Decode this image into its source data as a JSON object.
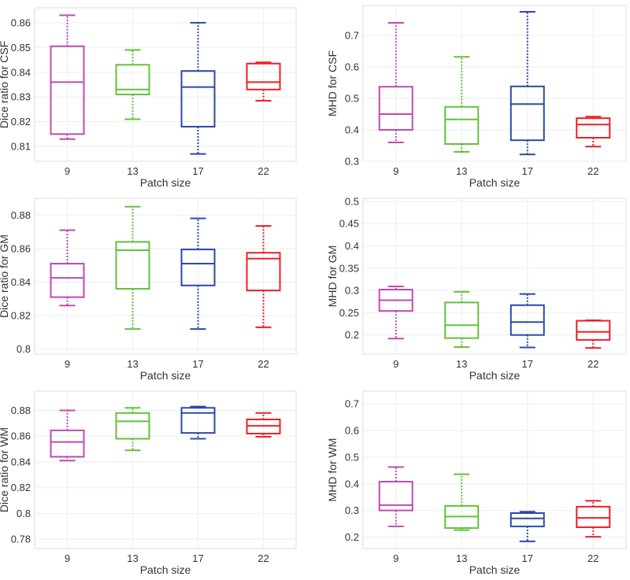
{
  "colors": {
    "9": "#c248b4",
    "13": "#62c23a",
    "17": "#2c48a8",
    "22": "#f01e26"
  },
  "chart_data": [
    {
      "type": "box",
      "xlabel": "Patch size",
      "ylabel": "Dice ratio for CSF",
      "categories": [
        "9",
        "13",
        "17",
        "22"
      ],
      "ylim": [
        0.804,
        0.866
      ],
      "yticks": [
        "0.81",
        "0.82",
        "0.83",
        "0.84",
        "0.85",
        "0.86"
      ],
      "grid": true,
      "boxes": [
        {
          "min": 0.813,
          "q1": 0.815,
          "median": 0.836,
          "q3": 0.8505,
          "max": 0.863
        },
        {
          "min": 0.821,
          "q1": 0.831,
          "median": 0.833,
          "q3": 0.843,
          "max": 0.849
        },
        {
          "min": 0.807,
          "q1": 0.818,
          "median": 0.834,
          "q3": 0.8405,
          "max": 0.86
        },
        {
          "min": 0.8285,
          "q1": 0.833,
          "median": 0.836,
          "q3": 0.8435,
          "max": 0.844
        }
      ]
    },
    {
      "type": "box",
      "xlabel": "Patch size",
      "ylabel": "MHD for CSF",
      "categories": [
        "9",
        "13",
        "17",
        "22"
      ],
      "ylim": [
        0.3,
        0.795
      ],
      "yticks": [
        "0.3",
        "0.4",
        "0.5",
        "0.6",
        "0.7"
      ],
      "grid": true,
      "boxes": [
        {
          "min": 0.36,
          "q1": 0.4,
          "median": 0.45,
          "q3": 0.537,
          "max": 0.74
        },
        {
          "min": 0.33,
          "q1": 0.355,
          "median": 0.433,
          "q3": 0.473,
          "max": 0.632
        },
        {
          "min": 0.322,
          "q1": 0.367,
          "median": 0.482,
          "q3": 0.538,
          "max": 0.775
        },
        {
          "min": 0.347,
          "q1": 0.375,
          "median": 0.417,
          "q3": 0.437,
          "max": 0.442
        }
      ]
    },
    {
      "type": "box",
      "xlabel": "Patch size",
      "ylabel": "Dice ratio for GM",
      "categories": [
        "9",
        "13",
        "17",
        "22"
      ],
      "ylim": [
        0.797,
        0.89
      ],
      "yticks": [
        "0.8",
        "0.82",
        "0.84",
        "0.86",
        "0.88"
      ],
      "grid": true,
      "boxes": [
        {
          "min": 0.826,
          "q1": 0.831,
          "median": 0.8425,
          "q3": 0.851,
          "max": 0.871
        },
        {
          "min": 0.812,
          "q1": 0.836,
          "median": 0.859,
          "q3": 0.864,
          "max": 0.885
        },
        {
          "min": 0.812,
          "q1": 0.838,
          "median": 0.851,
          "q3": 0.8595,
          "max": 0.878
        },
        {
          "min": 0.813,
          "q1": 0.835,
          "median": 0.854,
          "q3": 0.8575,
          "max": 0.8735
        }
      ]
    },
    {
      "type": "box",
      "xlabel": "Patch size",
      "ylabel": "MHD for GM",
      "categories": [
        "9",
        "13",
        "17",
        "22"
      ],
      "ylim": [
        0.157,
        0.507
      ],
      "yticks": [
        "0.2",
        "0.25",
        "0.3",
        "0.35",
        "0.4",
        "0.45",
        "0.5"
      ],
      "grid": true,
      "boxes": [
        {
          "min": 0.192,
          "q1": 0.254,
          "median": 0.278,
          "q3": 0.302,
          "max": 0.309
        },
        {
          "min": 0.173,
          "q1": 0.193,
          "median": 0.222,
          "q3": 0.273,
          "max": 0.297
        },
        {
          "min": 0.172,
          "q1": 0.2,
          "median": 0.229,
          "q3": 0.267,
          "max": 0.292
        },
        {
          "min": 0.171,
          "q1": 0.189,
          "median": 0.207,
          "q3": 0.232,
          "max": 0.233
        }
      ]
    },
    {
      "type": "box",
      "xlabel": "Patch size",
      "ylabel": "Dice ratio for WM",
      "categories": [
        "9",
        "13",
        "17",
        "22"
      ],
      "ylim": [
        0.7727,
        0.895
      ],
      "yticks": [
        "0.78",
        "0.8",
        "0.82",
        "0.84",
        "0.86",
        "0.88"
      ],
      "grid": true,
      "boxes": [
        {
          "min": 0.841,
          "q1": 0.844,
          "median": 0.8555,
          "q3": 0.8645,
          "max": 0.88
        },
        {
          "min": 0.849,
          "q1": 0.858,
          "median": 0.8715,
          "q3": 0.878,
          "max": 0.882
        },
        {
          "min": 0.858,
          "q1": 0.8625,
          "median": 0.878,
          "q3": 0.882,
          "max": 0.883
        },
        {
          "min": 0.8595,
          "q1": 0.862,
          "median": 0.868,
          "q3": 0.873,
          "max": 0.878
        }
      ]
    },
    {
      "type": "box",
      "xlabel": "Patch size",
      "ylabel": "MHD for WM",
      "categories": [
        "9",
        "13",
        "17",
        "22"
      ],
      "ylim": [
        0.157,
        0.748
      ],
      "yticks": [
        "0.2",
        "0.3",
        "0.4",
        "0.5",
        "0.6",
        "0.7"
      ],
      "grid": true,
      "boxes": [
        {
          "min": 0.24,
          "q1": 0.3,
          "median": 0.32,
          "q3": 0.408,
          "max": 0.463
        },
        {
          "min": 0.226,
          "q1": 0.234,
          "median": 0.277,
          "q3": 0.317,
          "max": 0.436
        },
        {
          "min": 0.184,
          "q1": 0.24,
          "median": 0.27,
          "q3": 0.29,
          "max": 0.295
        },
        {
          "min": 0.201,
          "q1": 0.237,
          "median": 0.272,
          "q3": 0.314,
          "max": 0.336
        }
      ]
    }
  ]
}
